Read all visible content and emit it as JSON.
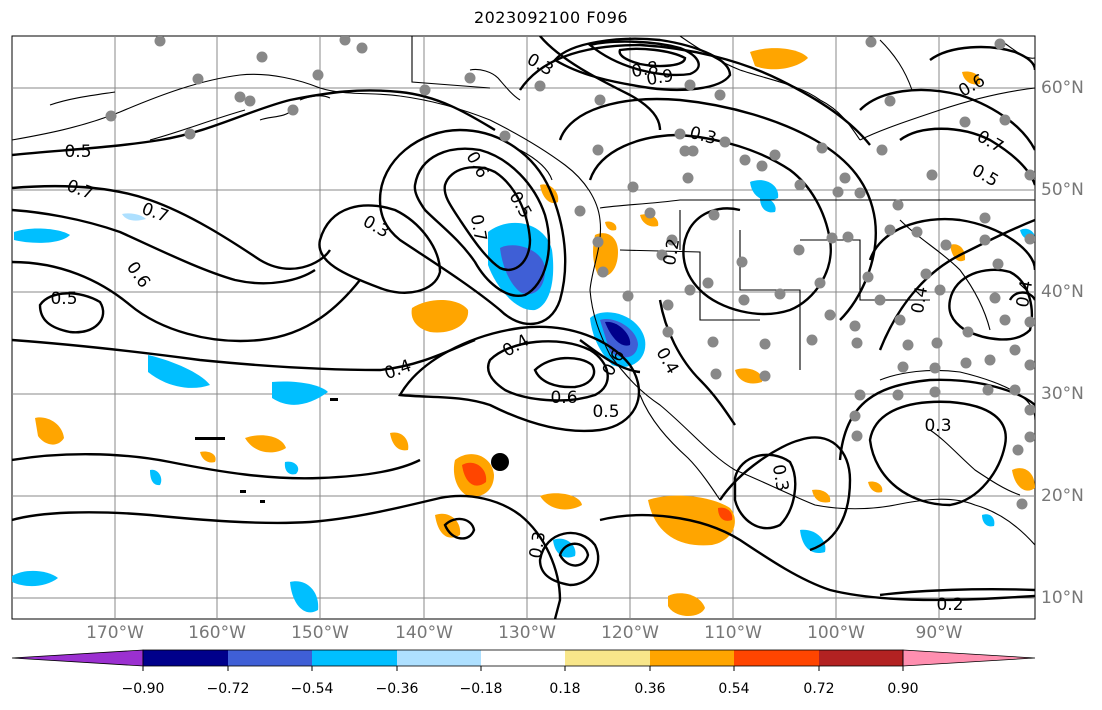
{
  "title": "2023092100 F096",
  "lon_labels": [
    "170°W",
    "160°W",
    "150°W",
    "140°W",
    "130°W",
    "120°W",
    "110°W",
    "100°W",
    "90°W"
  ],
  "lat_labels": [
    "60°N",
    "50°N",
    "40°N",
    "30°N",
    "20°N",
    "10°N"
  ],
  "contour_labels": [
    "0.5",
    "0.7",
    "0.7",
    "0.6",
    "0.5",
    "0.3",
    "0.6",
    "0.7",
    "0.5",
    "0.4",
    "0.4",
    "0.6",
    "0.5",
    "0.6",
    "0.3",
    "0.3",
    "0.8",
    "0.9",
    "0.3",
    "0.2",
    "0.4",
    "0.7",
    "0.5",
    "0.6",
    "0.3",
    "0.3",
    "0.2",
    "0.4",
    "0.4"
  ],
  "colorbar": {
    "ticks": [
      "−0.90",
      "−0.72",
      "−0.54",
      "−0.36",
      "−0.18",
      "0.18",
      "0.36",
      "0.54",
      "0.72",
      "0.90"
    ],
    "colors": [
      "#9b30d0",
      "#00008b",
      "#3f5fd6",
      "#00bfff",
      "#aee0ff",
      "#ffffff",
      "#f8e68a",
      "#ffa500",
      "#ff4500",
      "#b22222",
      "#ff8fb0"
    ]
  }
}
